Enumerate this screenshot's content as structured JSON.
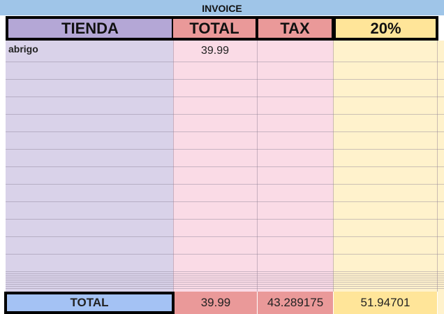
{
  "title": "INVOICE",
  "headers": [
    "TIENDA",
    "TOTAL",
    "TAX",
    "20%"
  ],
  "rows": [
    {
      "tienda": "abrigo",
      "total": "39.99",
      "tax": "",
      "pct": ""
    }
  ],
  "totals": {
    "label": "TOTAL",
    "total": "39.99",
    "tax": "43.289175",
    "pct": "51.94701"
  },
  "colors": {
    "title": "#9fc5e8",
    "tienda_header": "#b4a7d6",
    "tienda_body": "#d9d2e9",
    "red_header": "#ea9999",
    "pink_body": "#fadbe6",
    "yellow_header": "#ffe599",
    "yellow_body": "#fff2cc",
    "total_label": "#a4c2f4"
  }
}
